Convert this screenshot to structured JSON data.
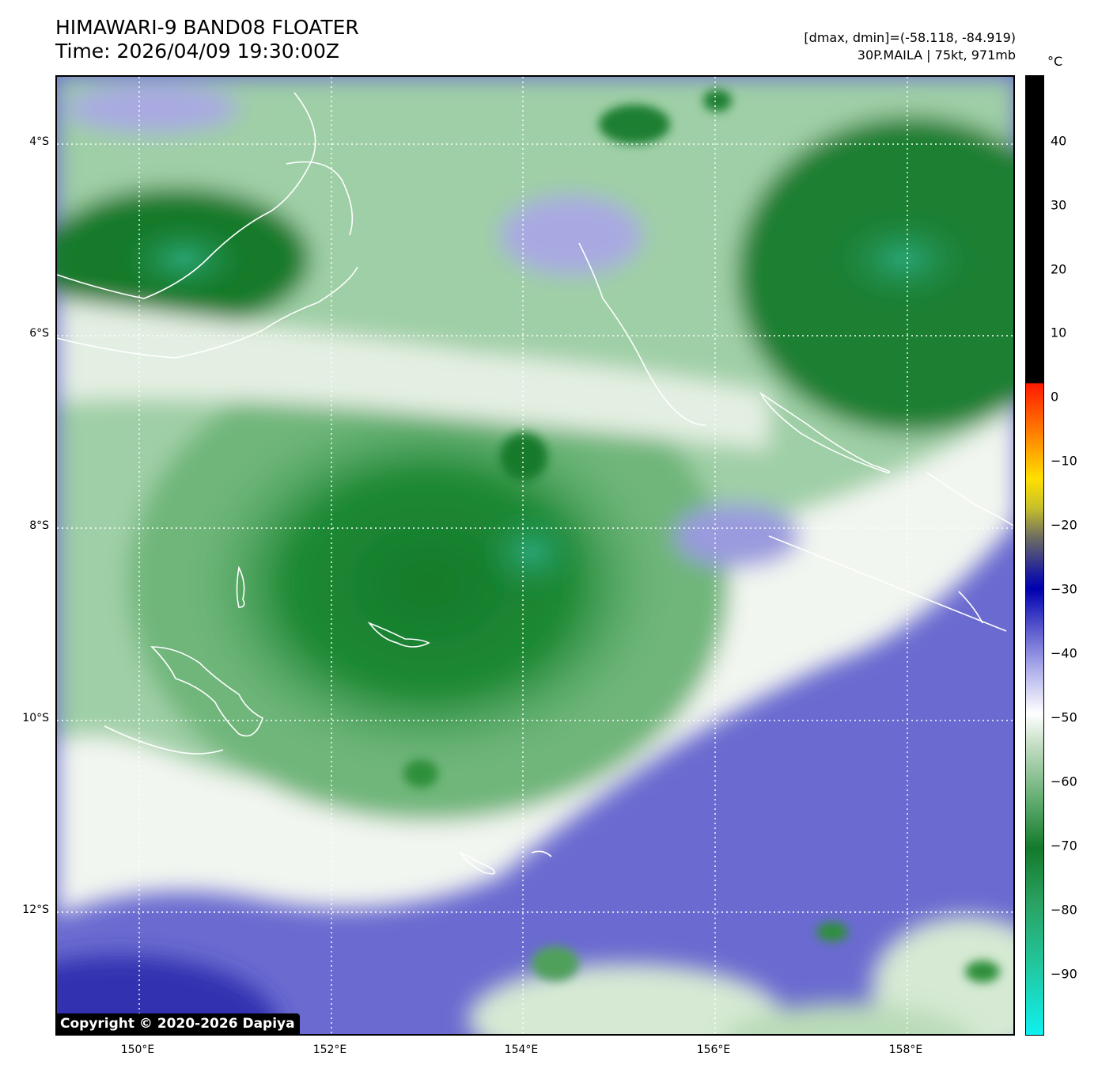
{
  "header": {
    "title_line1": "HIMAWARI-9 BAND08 FLOATER",
    "title_line2": "Time: 2026/04/09 19:30:00Z",
    "range_text": "[dmax, dmin]=(-58.118, -84.919)",
    "storm_text": "30P.MAILA | 75kt, 971mb"
  },
  "map": {
    "lat_labels": [
      "4°S",
      "6°S",
      "8°S",
      "10°S",
      "12°S"
    ],
    "lon_labels": [
      "150°E",
      "152°E",
      "154°E",
      "156°E",
      "158°E"
    ],
    "copyright": "Copyright © 2020-2026 Dapiya",
    "colors": {
      "clear_sky": "#6a6ad0",
      "cloud_white": "#f2f6f0",
      "cloud_green": "#2f8f3a",
      "cold_top": "#137a2a",
      "coldest_top": "#2aa678",
      "coastline": "#ffffff"
    }
  },
  "colorbar": {
    "unit": "°C",
    "ticks": [
      "40",
      "30",
      "20",
      "10",
      "0",
      "−10",
      "−20",
      "−30",
      "−40",
      "−50",
      "−60",
      "−70",
      "−80",
      "−90"
    ]
  }
}
